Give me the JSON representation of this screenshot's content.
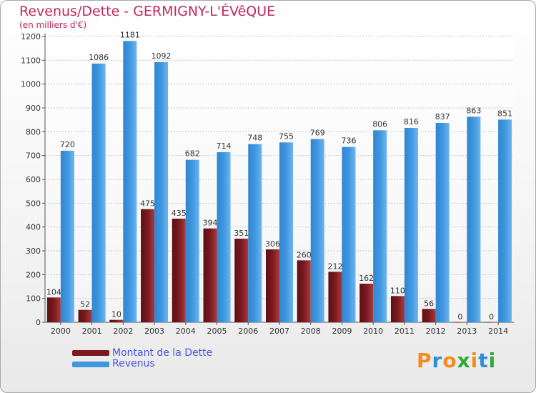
{
  "title": "Revenus/Dette - GERMIGNY-L'ÉVêQUE",
  "subtitle": "(en milliers d'€)",
  "logo": {
    "letters": [
      "P",
      "r",
      "o",
      "x",
      "i",
      "t",
      "i"
    ],
    "colors": [
      "#f28c1e",
      "#2e8fd8",
      "#f28c1e",
      "#2eaa3a",
      "#f28c1e",
      "#2e8fd8",
      "#2eaa3a"
    ]
  },
  "colors": {
    "dette": "#7b1a1f",
    "revenus": "#3f97e0",
    "title": "#c1285a",
    "legend_text": "#4a56dd"
  },
  "chart_data": {
    "type": "bar",
    "title": "Revenus/Dette - GERMIGNY-L'ÉVêQUE",
    "subtitle": "(en milliers d'€)",
    "categories": [
      "2000",
      "2001",
      "2002",
      "2003",
      "2004",
      "2005",
      "2006",
      "2007",
      "2008",
      "2009",
      "2010",
      "2011",
      "2012",
      "2013",
      "2014"
    ],
    "series": [
      {
        "name": "Montant de la Dette",
        "values": [
          104,
          52,
          10,
          475,
          435,
          394,
          351,
          306,
          260,
          212,
          162,
          110,
          56,
          0,
          0
        ]
      },
      {
        "name": "Revenus",
        "values": [
          720,
          1086,
          1181,
          1092,
          682,
          714,
          748,
          755,
          769,
          736,
          806,
          816,
          837,
          863,
          851
        ]
      }
    ],
    "ylim": [
      0,
      1200
    ],
    "yticks": [
      0,
      100,
      200,
      300,
      400,
      500,
      600,
      700,
      800,
      900,
      1000,
      1100,
      1200
    ],
    "grid": true,
    "legend_position": "bottom-left"
  }
}
